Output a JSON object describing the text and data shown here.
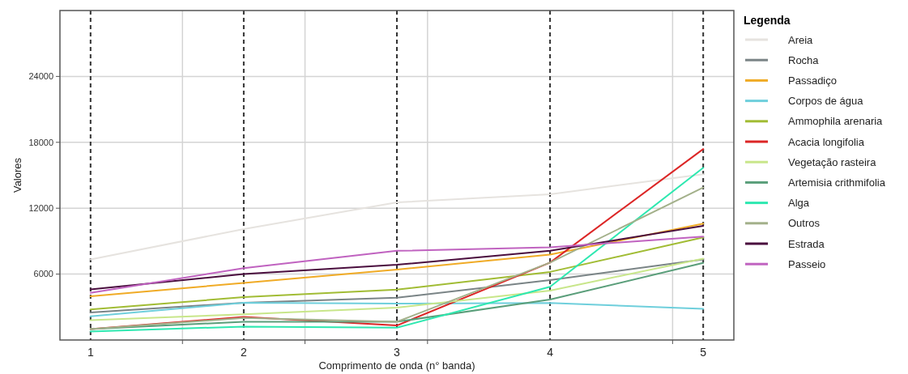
{
  "chart_data": {
    "type": "line",
    "xlabel": "Comprimento de onda (n° banda)",
    "ylabel": "Valores",
    "legend_title": "Legenda",
    "legend": "right",
    "grid": true,
    "line_style": "solid",
    "marker": "none",
    "x": [
      1,
      2,
      3,
      4,
      5
    ],
    "xlim": [
      0.8,
      5.2
    ],
    "xticks": [
      {
        "value": 1.6,
        "label": null
      },
      {
        "value": 2.4,
        "label": null
      },
      {
        "value": 3.2,
        "label": null
      },
      {
        "value": 4.8,
        "label": null
      }
    ],
    "ylim": [
      0,
      30000
    ],
    "yticks": [
      6000,
      12000,
      18000,
      24000
    ],
    "ref_lines": [
      {
        "axis": "x",
        "value": 1,
        "label": "1",
        "color": "#333333",
        "line_style": "dashed"
      },
      {
        "axis": "x",
        "value": 2,
        "label": "2",
        "color": "#333333",
        "line_style": "dashed"
      },
      {
        "axis": "x",
        "value": 3,
        "label": "3",
        "color": "#333333",
        "line_style": "dashed"
      },
      {
        "axis": "x",
        "value": 4,
        "label": "4",
        "color": "#333333",
        "line_style": "dashed"
      },
      {
        "axis": "x",
        "value": 5,
        "label": "5",
        "color": "#333333",
        "line_style": "dashed"
      }
    ],
    "series": [
      {
        "name": "Areia",
        "color": "#e6e3df",
        "values": [
          7340,
          10100,
          12530,
          13270,
          15100
        ]
      },
      {
        "name": "Rocha",
        "color": "#7a8486",
        "values": [
          2510,
          3390,
          3850,
          5460,
          7340
        ]
      },
      {
        "name": "Passadiço",
        "color": "#f0ab26",
        "values": [
          3980,
          5200,
          6410,
          7780,
          10590
        ]
      },
      {
        "name": "Corpos de água",
        "color": "#6fcfdc",
        "values": [
          2150,
          3390,
          3320,
          3370,
          2830
        ]
      },
      {
        "name": "Ammophila arenaria",
        "color": "#a1bc34",
        "values": [
          2780,
          3900,
          4580,
          6200,
          9340
        ]
      },
      {
        "name": "Acacia longifolia",
        "color": "#dc2626",
        "values": [
          1000,
          2100,
          1320,
          7050,
          17390
        ]
      },
      {
        "name": "Vegetação rasteira",
        "color": "#c8e68a",
        "values": [
          1800,
          2340,
          2950,
          4490,
          7410
        ]
      },
      {
        "name": "Artemisia crithmifolia",
        "color": "#5a9e7a",
        "values": [
          1000,
          1660,
          1660,
          3680,
          7020
        ]
      },
      {
        "name": "Alga",
        "color": "#2ee8b0",
        "values": [
          780,
          1220,
          1120,
          4850,
          15680
        ]
      },
      {
        "name": "Outros",
        "color": "#a3b08a",
        "values": [
          1000,
          2000,
          1660,
          7050,
          13880
        ]
      },
      {
        "name": "Estrada",
        "color": "#4a0e3e",
        "values": [
          4610,
          6000,
          6850,
          8120,
          10390
        ]
      },
      {
        "name": "Passeio",
        "color": "#c063c0",
        "values": [
          4290,
          6540,
          8120,
          8440,
          9420
        ]
      }
    ]
  }
}
